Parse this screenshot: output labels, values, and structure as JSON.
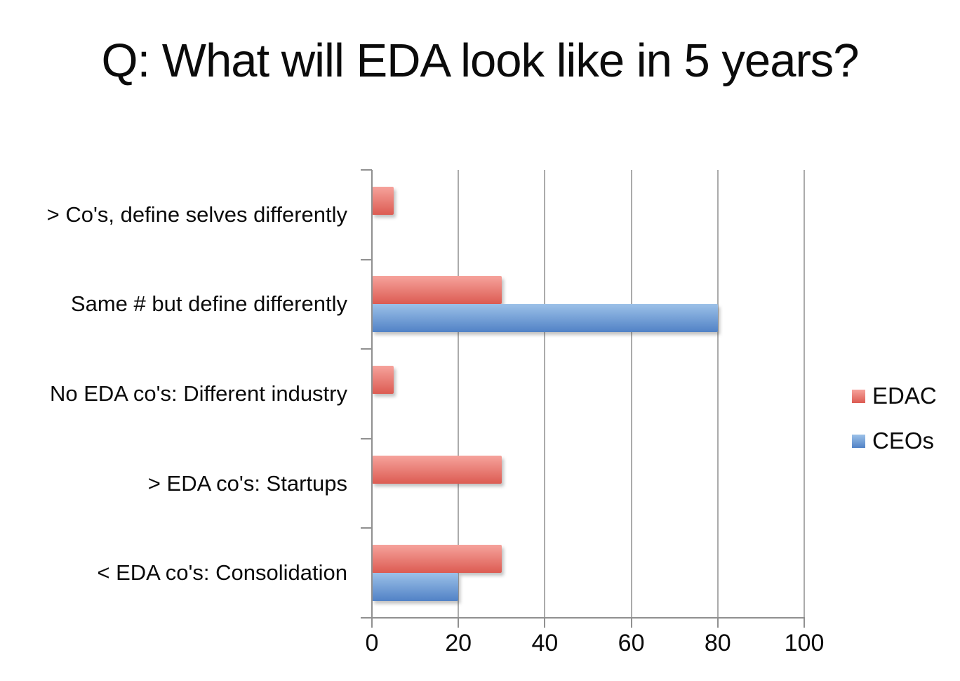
{
  "chart_data": {
    "type": "bar",
    "orientation": "horizontal",
    "title": "Q: What will EDA look like in 5 years?",
    "categories": [
      "> Co's, define selves differently",
      "Same # but define differently",
      "No EDA co's: Different industry",
      "> EDA co's: Startups",
      "< EDA co's: Consolidation"
    ],
    "series": [
      {
        "name": "EDAC",
        "values": [
          5,
          30,
          5,
          30,
          30
        ],
        "color": "#e0655c",
        "color_top": "#f6a39c",
        "color_bottom": "#dc5b52"
      },
      {
        "name": "CEOs",
        "values": [
          0,
          80,
          0,
          0,
          20
        ],
        "color": "#6d9fd8",
        "color_top": "#9cc1e8",
        "color_bottom": "#5182c6"
      }
    ],
    "xlim": [
      0,
      100
    ],
    "x_ticks": [
      0,
      20,
      40,
      60,
      80,
      100
    ],
    "grid": true,
    "grid_color": "#ababab",
    "axis_color": "#909090",
    "legend_position": "right"
  }
}
